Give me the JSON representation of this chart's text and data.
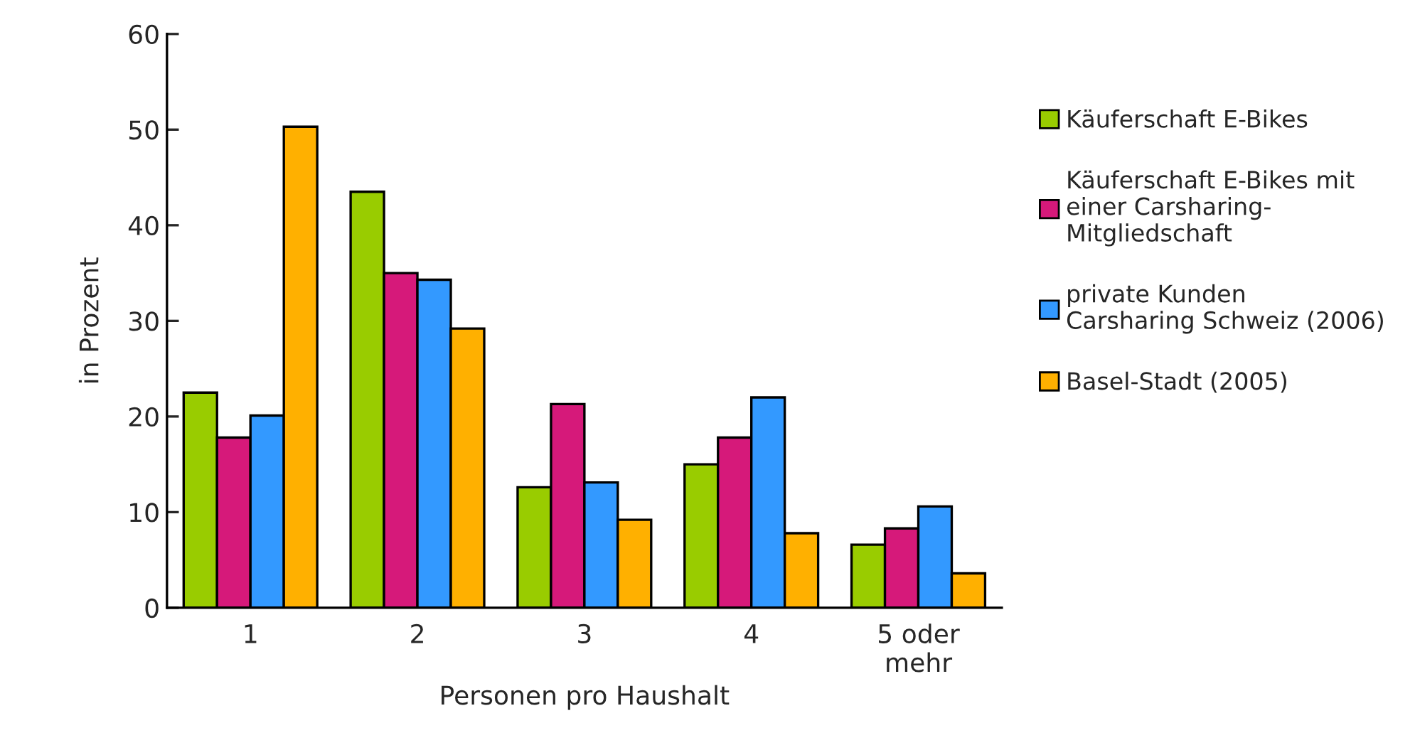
{
  "chart_data": {
    "type": "bar",
    "xlabel": "Personen pro Haushalt",
    "ylabel": "in Prozent",
    "categories": [
      "1",
      "2",
      "3",
      "4",
      "5 oder\nmehr"
    ],
    "series": [
      {
        "name": "Käuferschaft E-Bikes",
        "color": "#99cc00",
        "values": [
          22.5,
          43.5,
          12.6,
          15.0,
          6.6
        ]
      },
      {
        "name": "Käuferschaft E-Bikes mit\neiner Carsharing-\nMitgliedschaft",
        "color": "#d6197a",
        "values": [
          17.8,
          35.0,
          21.3,
          17.8,
          8.3
        ]
      },
      {
        "name": "private Kunden\nCarsharing Schweiz (2006)",
        "color": "#3399ff",
        "values": [
          20.1,
          34.3,
          13.1,
          22.0,
          10.6
        ]
      },
      {
        "name": "Basel-Stadt (2005)",
        "color": "#ffb000",
        "values": [
          50.3,
          29.2,
          9.2,
          7.8,
          3.6
        ]
      }
    ],
    "ylim": [
      0,
      60
    ],
    "yticks": [
      0,
      10,
      20,
      30,
      40,
      50,
      60
    ],
    "grid": false,
    "legend": "right"
  }
}
